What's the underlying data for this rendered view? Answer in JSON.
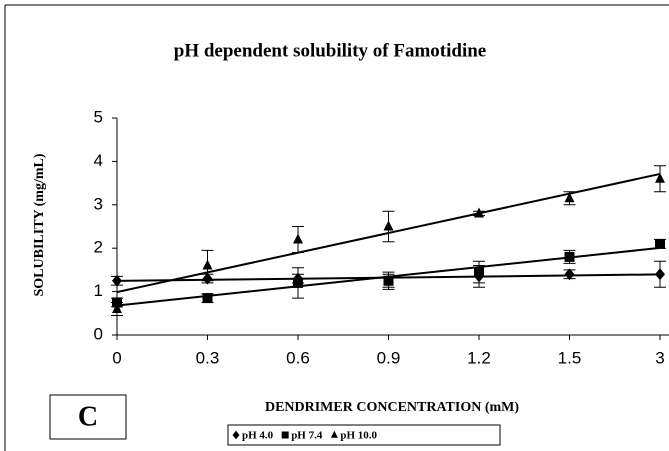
{
  "chart_data": {
    "type": "line",
    "title": "pH dependent solubility of Famotidine",
    "x_label": "DENDRIMER CONCENTRATION (mM)",
    "y_label": "SOLUBILITY (mg/mL)",
    "panel_label": "C",
    "categories": [
      "0",
      "0.3",
      "0.6",
      "0.9",
      "1.2",
      "1.5",
      "3"
    ],
    "ylim": [
      0,
      5
    ],
    "yticks": [
      0,
      1,
      2,
      3,
      4,
      5
    ],
    "grid": false,
    "legend": "bottom",
    "trendline": "linear",
    "series": [
      {
        "name": "pH 4.0",
        "color": "#000000",
        "marker": "diamond",
        "values": [
          1.25,
          1.3,
          1.3,
          1.25,
          1.35,
          1.4,
          1.4
        ],
        "errors": [
          0.1,
          0.1,
          0.1,
          0.15,
          0.25,
          0.1,
          0.3
        ]
      },
      {
        "name": "pH 7.4",
        "color": "#000000",
        "marker": "square",
        "values": [
          0.75,
          0.85,
          1.2,
          1.25,
          1.45,
          1.8,
          2.1
        ],
        "errors": [
          0.1,
          0.1,
          0.35,
          0.2,
          0.25,
          0.15,
          0.1
        ]
      },
      {
        "name": "pH 10.0",
        "color": "#000000",
        "marker": "triangle",
        "values": [
          0.6,
          1.6,
          2.2,
          2.5,
          2.8,
          3.15,
          3.6
        ],
        "errors": [
          0.15,
          0.35,
          0.3,
          0.35,
          0.05,
          0.15,
          0.3
        ]
      }
    ]
  }
}
